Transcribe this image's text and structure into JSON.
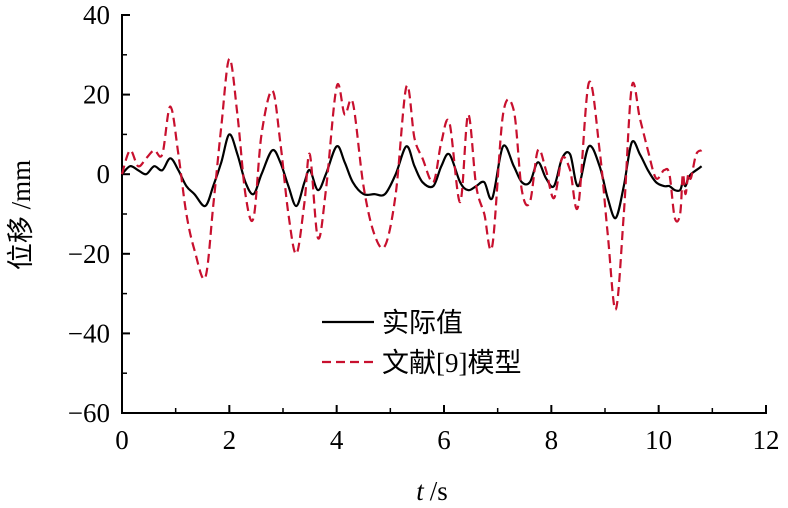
{
  "chart_data": {
    "type": "line",
    "title": "",
    "xlabel": "t /s",
    "xlabel_var": "t",
    "xlabel_unit": "/s",
    "ylabel": "位移 /mm",
    "xlim": [
      0,
      12
    ],
    "ylim": [
      -60,
      40
    ],
    "xticks": [
      "0",
      "2",
      "4",
      "6",
      "8",
      "10",
      "12"
    ],
    "yticks": [
      "−60",
      "−40",
      "−20",
      "0",
      "20",
      "40"
    ],
    "grid": false,
    "legend_position": "lower-center",
    "series": [
      {
        "name": "实际值",
        "style": "solid",
        "color": "#000000",
        "x": [
          0,
          0.15,
          0.3,
          0.45,
          0.6,
          0.75,
          0.9,
          1.05,
          1.2,
          1.35,
          1.55,
          1.7,
          1.85,
          2.0,
          2.15,
          2.3,
          2.45,
          2.6,
          2.8,
          2.95,
          3.1,
          3.25,
          3.4,
          3.5,
          3.65,
          3.8,
          4.0,
          4.15,
          4.3,
          4.5,
          4.7,
          4.9,
          5.1,
          5.3,
          5.45,
          5.6,
          5.8,
          5.95,
          6.1,
          6.3,
          6.45,
          6.6,
          6.75,
          6.9,
          7.1,
          7.3,
          7.45,
          7.6,
          7.75,
          7.9,
          8.05,
          8.2,
          8.35,
          8.5,
          8.7,
          8.9,
          9.05,
          9.2,
          9.35,
          9.5,
          9.65,
          9.8,
          9.95,
          10.1,
          10.2,
          10.3,
          10.4,
          10.45,
          10.5,
          10.55,
          10.6,
          10.7,
          10.8
        ],
        "y": [
          0,
          2,
          1,
          0,
          2,
          1,
          4,
          1,
          -3,
          -5,
          -8,
          -3,
          3,
          10,
          5,
          -2,
          -5,
          0,
          6,
          3,
          -3,
          -8,
          -2,
          1,
          -4,
          0,
          7,
          3,
          -2,
          -5,
          -5,
          -5,
          0,
          7,
          2,
          -2,
          -3,
          2,
          5,
          -2,
          -4,
          -3,
          -2,
          -6,
          7,
          2,
          -2,
          -2,
          3,
          -1,
          -3,
          4,
          5,
          -3,
          7,
          2,
          -6,
          -11,
          -3,
          8,
          5,
          1,
          -2,
          -3,
          -3,
          -4,
          -4,
          -2,
          -3,
          -1,
          0,
          1,
          2
        ]
      },
      {
        "name": "文献[9]模型",
        "style": "dashed",
        "color": "#c8102e",
        "x": [
          0,
          0.15,
          0.3,
          0.45,
          0.6,
          0.75,
          0.9,
          1.05,
          1.2,
          1.35,
          1.55,
          1.7,
          1.85,
          2.0,
          2.15,
          2.3,
          2.45,
          2.6,
          2.8,
          2.95,
          3.1,
          3.25,
          3.4,
          3.5,
          3.65,
          3.8,
          4.0,
          4.15,
          4.3,
          4.5,
          4.7,
          4.9,
          5.1,
          5.3,
          5.45,
          5.6,
          5.8,
          5.95,
          6.1,
          6.3,
          6.45,
          6.6,
          6.75,
          6.9,
          7.1,
          7.3,
          7.45,
          7.6,
          7.75,
          7.9,
          8.05,
          8.2,
          8.35,
          8.5,
          8.7,
          8.9,
          9.05,
          9.2,
          9.35,
          9.5,
          9.65,
          9.8,
          9.95,
          10.1,
          10.2,
          10.3,
          10.4,
          10.45,
          10.5,
          10.55,
          10.6,
          10.7,
          10.8
        ],
        "y": [
          0,
          6,
          2,
          4,
          6,
          5,
          17,
          5,
          -10,
          -19,
          -26,
          -8,
          12,
          29,
          15,
          -5,
          -11,
          10,
          21,
          8,
          -10,
          -20,
          -7,
          5,
          -16,
          -4,
          22,
          15,
          18,
          -3,
          -15,
          -18,
          -5,
          22,
          9,
          4,
          -2,
          8,
          13,
          -7,
          15,
          -3,
          -10,
          -18,
          15,
          16,
          -4,
          -7,
          6,
          1,
          -6,
          4,
          1,
          -8,
          23,
          6,
          -15,
          -34,
          -10,
          22,
          14,
          6,
          -1,
          1,
          0,
          -11,
          -10,
          0,
          -5,
          0,
          -1,
          5,
          6
        ]
      }
    ]
  }
}
